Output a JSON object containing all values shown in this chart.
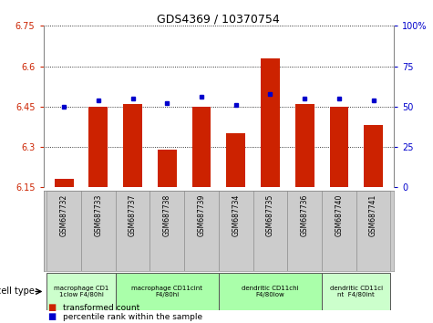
{
  "title": "GDS4369 / 10370754",
  "samples": [
    "GSM687732",
    "GSM687733",
    "GSM687737",
    "GSM687738",
    "GSM687739",
    "GSM687734",
    "GSM687735",
    "GSM687736",
    "GSM687740",
    "GSM687741"
  ],
  "transformed_count": [
    6.18,
    6.45,
    6.46,
    6.29,
    6.45,
    6.35,
    6.63,
    6.46,
    6.45,
    6.38
  ],
  "percentile_rank": [
    50,
    54,
    55,
    52,
    56,
    51,
    58,
    55,
    55,
    54
  ],
  "ylim_left": [
    6.15,
    6.75
  ],
  "ylim_right": [
    0,
    100
  ],
  "yticks_left": [
    6.15,
    6.3,
    6.45,
    6.6,
    6.75
  ],
  "yticks_right": [
    0,
    25,
    50,
    75,
    100
  ],
  "ytick_labels_left": [
    "6.15",
    "6.3",
    "6.45",
    "6.6",
    "6.75"
  ],
  "ytick_labels_right": [
    "0",
    "25",
    "50",
    "75",
    "100%"
  ],
  "bar_color": "#cc2200",
  "dot_color": "#0000cc",
  "background_color": "#ffffff",
  "cell_type_groups": [
    {
      "label": "macrophage CD1\n1clow F4/80hi",
      "start": 0,
      "end": 2,
      "color": "#ccffcc"
    },
    {
      "label": "macrophage CD11cint\nF4/80hi",
      "start": 2,
      "end": 5,
      "color": "#aaffaa"
    },
    {
      "label": "dendritic CD11chi\nF4/80low",
      "start": 5,
      "end": 8,
      "color": "#aaffaa"
    },
    {
      "label": "dendritic CD11ci\nnt  F4/80int",
      "start": 8,
      "end": 10,
      "color": "#ccffcc"
    }
  ],
  "legend_red_label": "transformed count",
  "legend_blue_label": "percentile rank within the sample",
  "cell_type_label": "cell type",
  "bar_base": 6.15
}
